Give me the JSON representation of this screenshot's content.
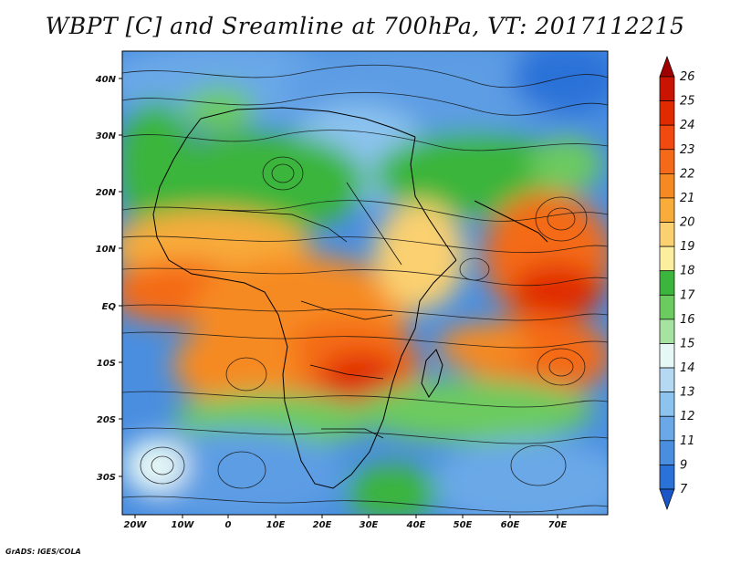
{
  "title": "WBPT [C] and Sreamline at 700hPa, VT: 2017112215",
  "credit": "GrADS: IGES/COLA",
  "map": {
    "lon_ticks": [
      "20W",
      "10W",
      "0",
      "10E",
      "20E",
      "30E",
      "40E",
      "50E",
      "60E",
      "70E"
    ],
    "lat_ticks": [
      "40N",
      "30N",
      "20N",
      "10N",
      "EQ",
      "10S",
      "20S",
      "30S"
    ]
  },
  "colorbar": {
    "labels": [
      "26",
      "25",
      "24",
      "23",
      "22",
      "21",
      "20",
      "19",
      "18",
      "17",
      "16",
      "15",
      "14",
      "13",
      "12",
      "11",
      "9",
      "7"
    ],
    "colors": [
      "#a10000",
      "#c81400",
      "#e02a00",
      "#f04a10",
      "#f46a18",
      "#f68a22",
      "#f8ac3a",
      "#fad070",
      "#fbee9e",
      "#3bb53b",
      "#6ccb5e",
      "#a6e2a0",
      "#e6f8f6",
      "#b5d9f3",
      "#8cc3ef",
      "#6aa8e8",
      "#4a8ee0",
      "#2a72d8",
      "#1a56c8"
    ]
  }
}
